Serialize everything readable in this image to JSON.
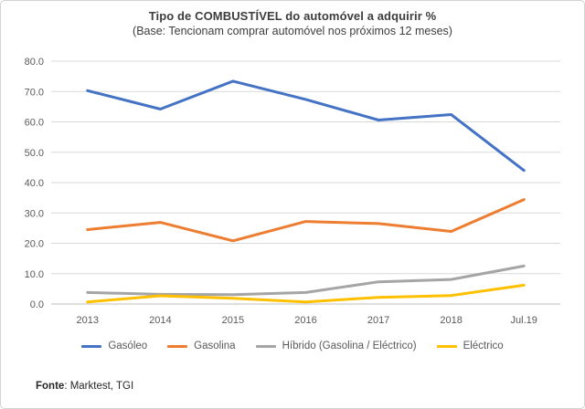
{
  "header": {
    "title": "Tipo de COMBUSTÍVEL do automóvel a adquirir %",
    "subtitle": "(Base: Tencionam comprar automóvel nos próximos 12 meses)"
  },
  "chart_data": {
    "type": "line",
    "title": "Tipo de COMBUSTÍVEL do automóvel a adquirir %",
    "subtitle": "(Base: Tencionam comprar automóvel nos próximos 12 meses)",
    "categories": [
      "2013",
      "2014",
      "2015",
      "2016",
      "2017",
      "2018",
      "Jul.19"
    ],
    "series": [
      {
        "name": "Gasóleo",
        "color": "#4472C4",
        "values": [
          70.3,
          64.2,
          73.4,
          67.4,
          60.6,
          62.4,
          44.0
        ]
      },
      {
        "name": "Gasolina",
        "color": "#ED7D31",
        "values": [
          24.5,
          26.9,
          20.8,
          27.2,
          26.5,
          23.9,
          34.4
        ]
      },
      {
        "name": "Híbrido (Gasolina / Eléctrico)",
        "color": "#A5A5A5",
        "values": [
          3.8,
          3.2,
          3.1,
          3.8,
          7.3,
          8.1,
          12.5
        ]
      },
      {
        "name": "Eléctrico",
        "color": "#FFC000",
        "values": [
          0.7,
          2.7,
          1.9,
          0.7,
          2.2,
          2.8,
          6.2
        ]
      }
    ],
    "ylim": [
      0,
      80
    ],
    "ytick_labels": [
      "0.0",
      "10.0",
      "20.0",
      "30.0",
      "40.0",
      "50.0",
      "60.0",
      "70.0",
      "80.0"
    ],
    "grid": true,
    "legend_position": "bottom"
  },
  "footer": {
    "source_bold": "Fonte",
    "source_rest": ": Marktest, TGI"
  },
  "colors": {
    "grid": "#D9D9D9",
    "axis_line": "#BFBFBF",
    "tick_text": "#595959"
  }
}
